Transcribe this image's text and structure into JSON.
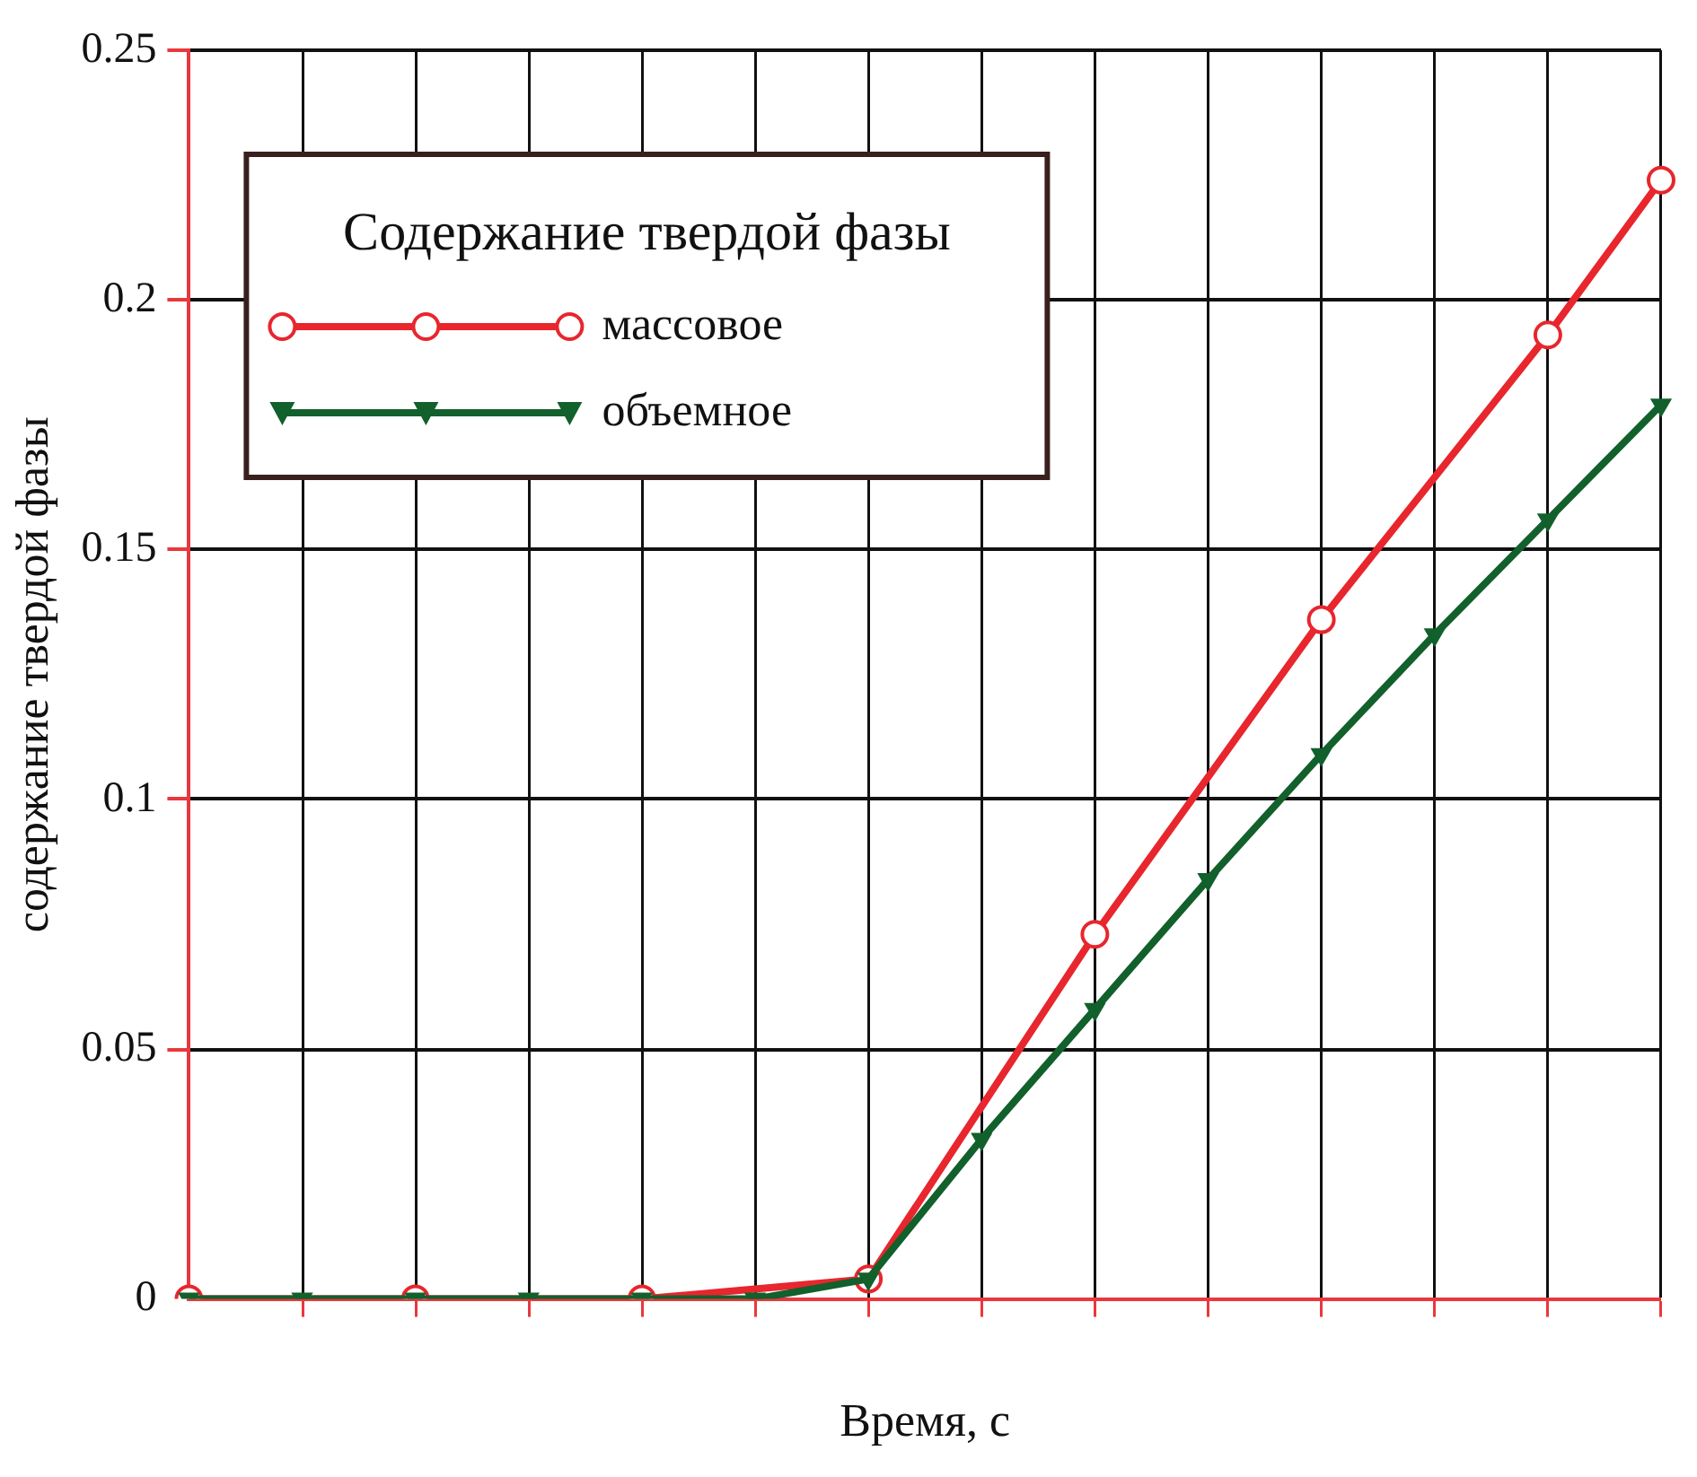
{
  "chart_data": {
    "type": "line",
    "xlabel": "Время, с",
    "ylabel": "содержание твердой фазы",
    "legend_title": "Содержание твердой фазы",
    "categories": [
      null,
      null,
      null,
      null,
      null,
      null,
      null,
      null,
      null,
      null,
      null,
      null,
      null,
      null
    ],
    "ylim": [
      0,
      0.25
    ],
    "yticks": [
      0,
      0.05,
      0.1,
      0.15,
      0.2,
      0.25
    ],
    "tick_labels": "y",
    "grid": true,
    "legend": "top left",
    "marker": "circle",
    "line_style": "solid",
    "series": [
      {
        "name": "массовое",
        "color": "#e8262d",
        "values": [
          0,
          null,
          0,
          null,
          0,
          null,
          0.004,
          null,
          0.073,
          null,
          0.136,
          null,
          0.193,
          0.224
        ]
      },
      {
        "name": "объемное",
        "color": "#12602c",
        "marker": "triangle",
        "values": [
          0,
          0,
          0,
          0,
          0,
          0,
          0.004,
          0.032,
          0.058,
          0.084,
          0.109,
          0.133,
          0.156,
          0.179
        ]
      }
    ]
  }
}
